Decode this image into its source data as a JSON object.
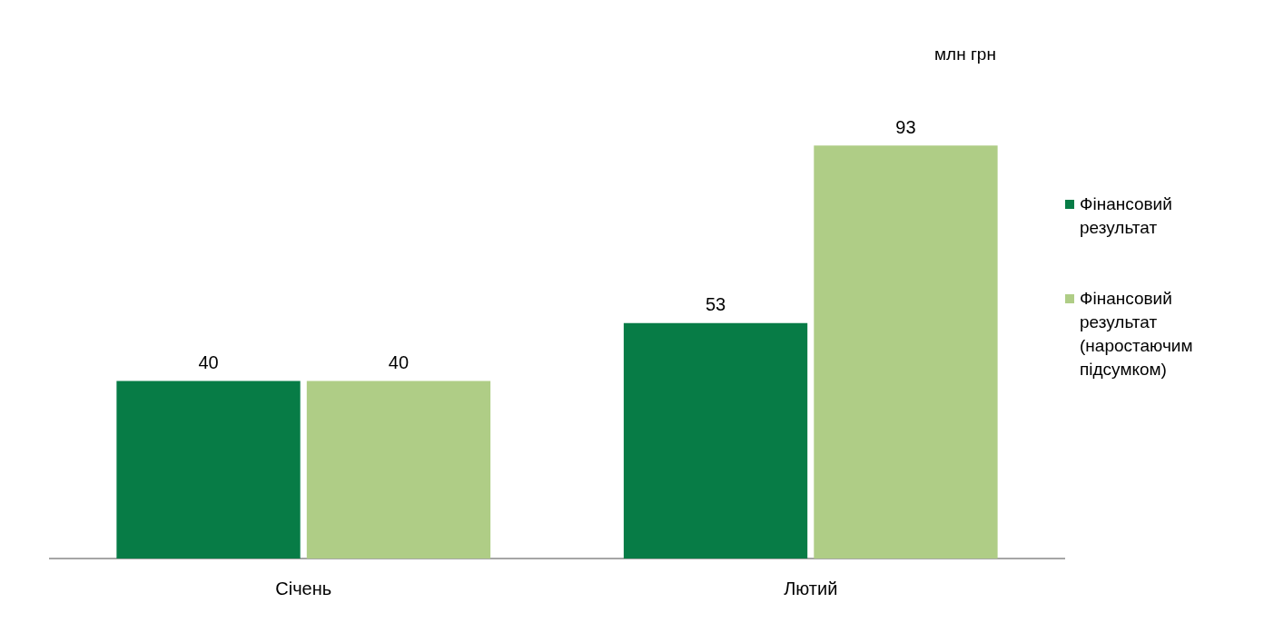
{
  "chart_data": {
    "type": "bar",
    "categories": [
      "Січень",
      "Лютий"
    ],
    "series": [
      {
        "name": "Фінансовий результат",
        "color": "#077c46",
        "values": [
          40,
          53
        ]
      },
      {
        "name": "Фінансовий результат (наростаючим підсумком)",
        "color": "#afcd86",
        "values": [
          40,
          93
        ]
      }
    ],
    "data_labels": true,
    "grid": false,
    "legend": "right",
    "annotations": [
      "млн грн"
    ]
  }
}
